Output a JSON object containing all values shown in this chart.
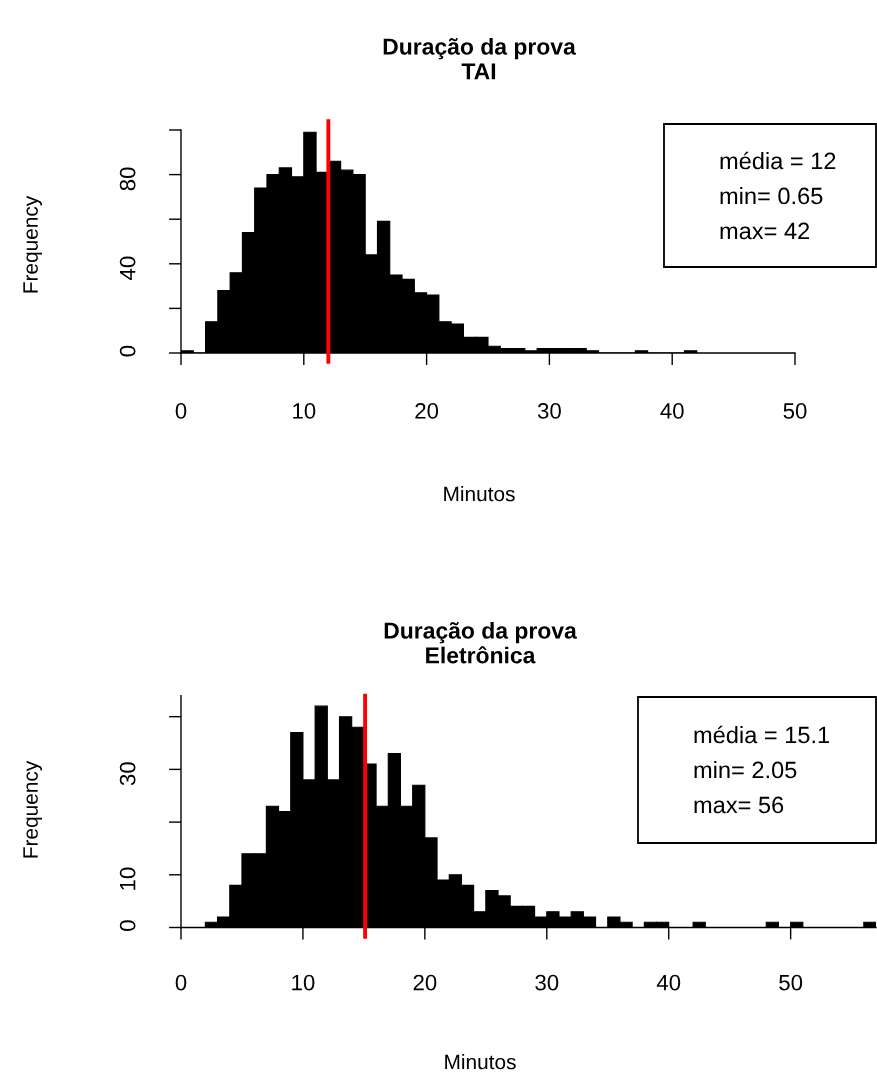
{
  "chart_data": [
    {
      "type": "histogram",
      "title": "Duração da prova\nTAI",
      "xlabel": "Minutos",
      "ylabel": "Frequency",
      "color": "#000000",
      "bins": [
        0,
        1,
        2,
        3,
        4,
        5,
        6,
        7,
        8,
        9,
        10,
        11,
        12,
        13,
        14,
        15,
        16,
        17,
        18,
        19,
        20,
        21,
        22,
        23,
        24,
        25,
        26,
        27,
        28,
        29,
        30,
        31,
        32,
        33,
        34,
        35,
        36,
        37,
        38,
        39,
        40,
        41,
        42
      ],
      "values": [
        1,
        0,
        14,
        28,
        36,
        54,
        74,
        80,
        83,
        79,
        99,
        81,
        86,
        82,
        80,
        44,
        59,
        35,
        33,
        27,
        26,
        14,
        13,
        7,
        7,
        3,
        2,
        2,
        1,
        2,
        2,
        2,
        2,
        1,
        0,
        0,
        0,
        1,
        0,
        0,
        0,
        1
      ],
      "xlim": [
        0,
        50
      ],
      "xticks": [
        0,
        10,
        20,
        30,
        40,
        50
      ],
      "ylim": [
        0,
        100
      ],
      "yticks": [
        0,
        {
          "value": 20,
          "label": null
        },
        40,
        {
          "value": 60,
          "label": null
        },
        80,
        {
          "value": 100,
          "label": null
        }
      ],
      "ref_lines": [
        {
          "axis": "x",
          "value": 12,
          "color": "#ff0000"
        }
      ],
      "annotations": [
        "média = 12",
        "min= 0.65",
        "max= 42"
      ]
    },
    {
      "type": "histogram",
      "title": "Duração da prova\nEletrônica",
      "xlabel": "Minutos",
      "ylabel": "Frequency",
      "color": "#000000",
      "bins": [
        2,
        3,
        4,
        5,
        6,
        7,
        8,
        9,
        10,
        11,
        12,
        13,
        14,
        15,
        16,
        17,
        18,
        19,
        20,
        21,
        22,
        23,
        24,
        25,
        26,
        27,
        28,
        29,
        30,
        31,
        32,
        33,
        34,
        35,
        36,
        37,
        38,
        39,
        40,
        41,
        42,
        43,
        44,
        45,
        46,
        47,
        48,
        49,
        50,
        51,
        52,
        53,
        54,
        55,
        56,
        57
      ],
      "values": [
        1,
        2,
        8,
        14,
        14,
        23,
        22,
        37,
        28,
        42,
        28,
        40,
        38,
        31,
        23,
        33,
        23,
        27,
        17,
        9,
        10,
        8,
        3,
        7,
        6,
        4,
        4,
        2,
        3,
        2,
        3,
        2,
        0,
        2,
        1,
        0,
        1,
        1,
        0,
        0,
        1,
        0,
        0,
        0,
        0,
        0,
        1,
        0,
        1,
        0,
        0,
        0,
        0,
        0,
        1
      ],
      "xlim": [
        0,
        57
      ],
      "xticks": [
        0,
        10,
        20,
        30,
        40,
        50
      ],
      "ylim": [
        0,
        44
      ],
      "yticks": [
        0,
        10,
        {
          "value": 20,
          "label": null
        },
        30,
        {
          "value": 40,
          "label": null
        }
      ],
      "ref_lines": [
        {
          "axis": "x",
          "value": 15.1,
          "color": "#ff0000"
        }
      ],
      "annotations": [
        "média = 15.1",
        "min= 2.05",
        "max= 56"
      ]
    }
  ]
}
